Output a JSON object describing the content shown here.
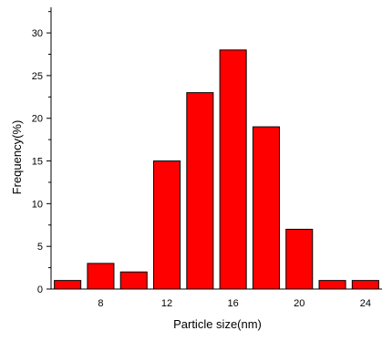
{
  "chart_data": {
    "type": "bar",
    "title": "",
    "xlabel": "Particle size(nm)",
    "ylabel": "Frequency(%)",
    "categories": [
      "6",
      "8",
      "10",
      "12",
      "14",
      "16",
      "18",
      "20",
      "22",
      "24"
    ],
    "values": [
      1,
      3,
      2,
      15,
      23,
      28,
      19,
      7,
      1,
      1
    ],
    "bar_color": "#ff0000",
    "bar_edge_color": "#000000",
    "xlim": [
      5,
      25
    ],
    "ylim": [
      0,
      33
    ],
    "xticks": [
      8,
      12,
      16,
      20,
      24
    ],
    "yticks": [
      0,
      5,
      10,
      15,
      20,
      25,
      30
    ],
    "grid": false,
    "legend": "none"
  }
}
